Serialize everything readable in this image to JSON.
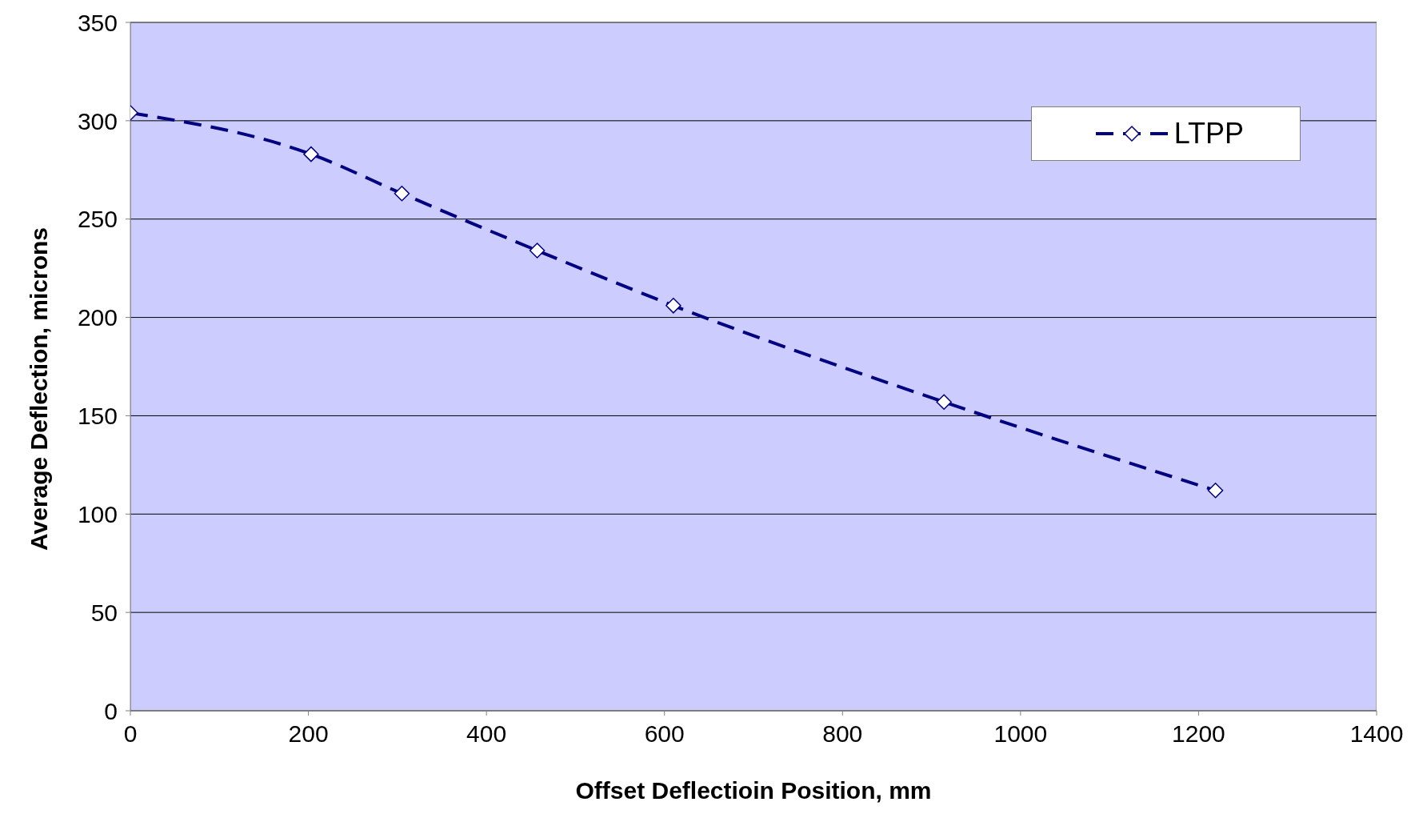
{
  "chart_data": {
    "type": "line",
    "xlabel": "Offset Deflectioin Position, mm",
    "ylabel": "Average Deflection, microns",
    "x": [
      0,
      203,
      305,
      457,
      610,
      914,
      1219
    ],
    "series": [
      {
        "name": "LTPP",
        "color": "#000080",
        "values": [
          304,
          283,
          263,
          234,
          206,
          157,
          112
        ]
      }
    ],
    "xlim": [
      0,
      1400
    ],
    "xticks": [
      0,
      200,
      400,
      600,
      800,
      1000,
      1200,
      1400
    ],
    "ylim": [
      0,
      350
    ],
    "yticks": [
      0,
      50,
      100,
      150,
      200,
      250,
      300,
      350
    ],
    "grid": "y",
    "legend": "top right",
    "marker": "diamond",
    "line_style": "dashed"
  }
}
